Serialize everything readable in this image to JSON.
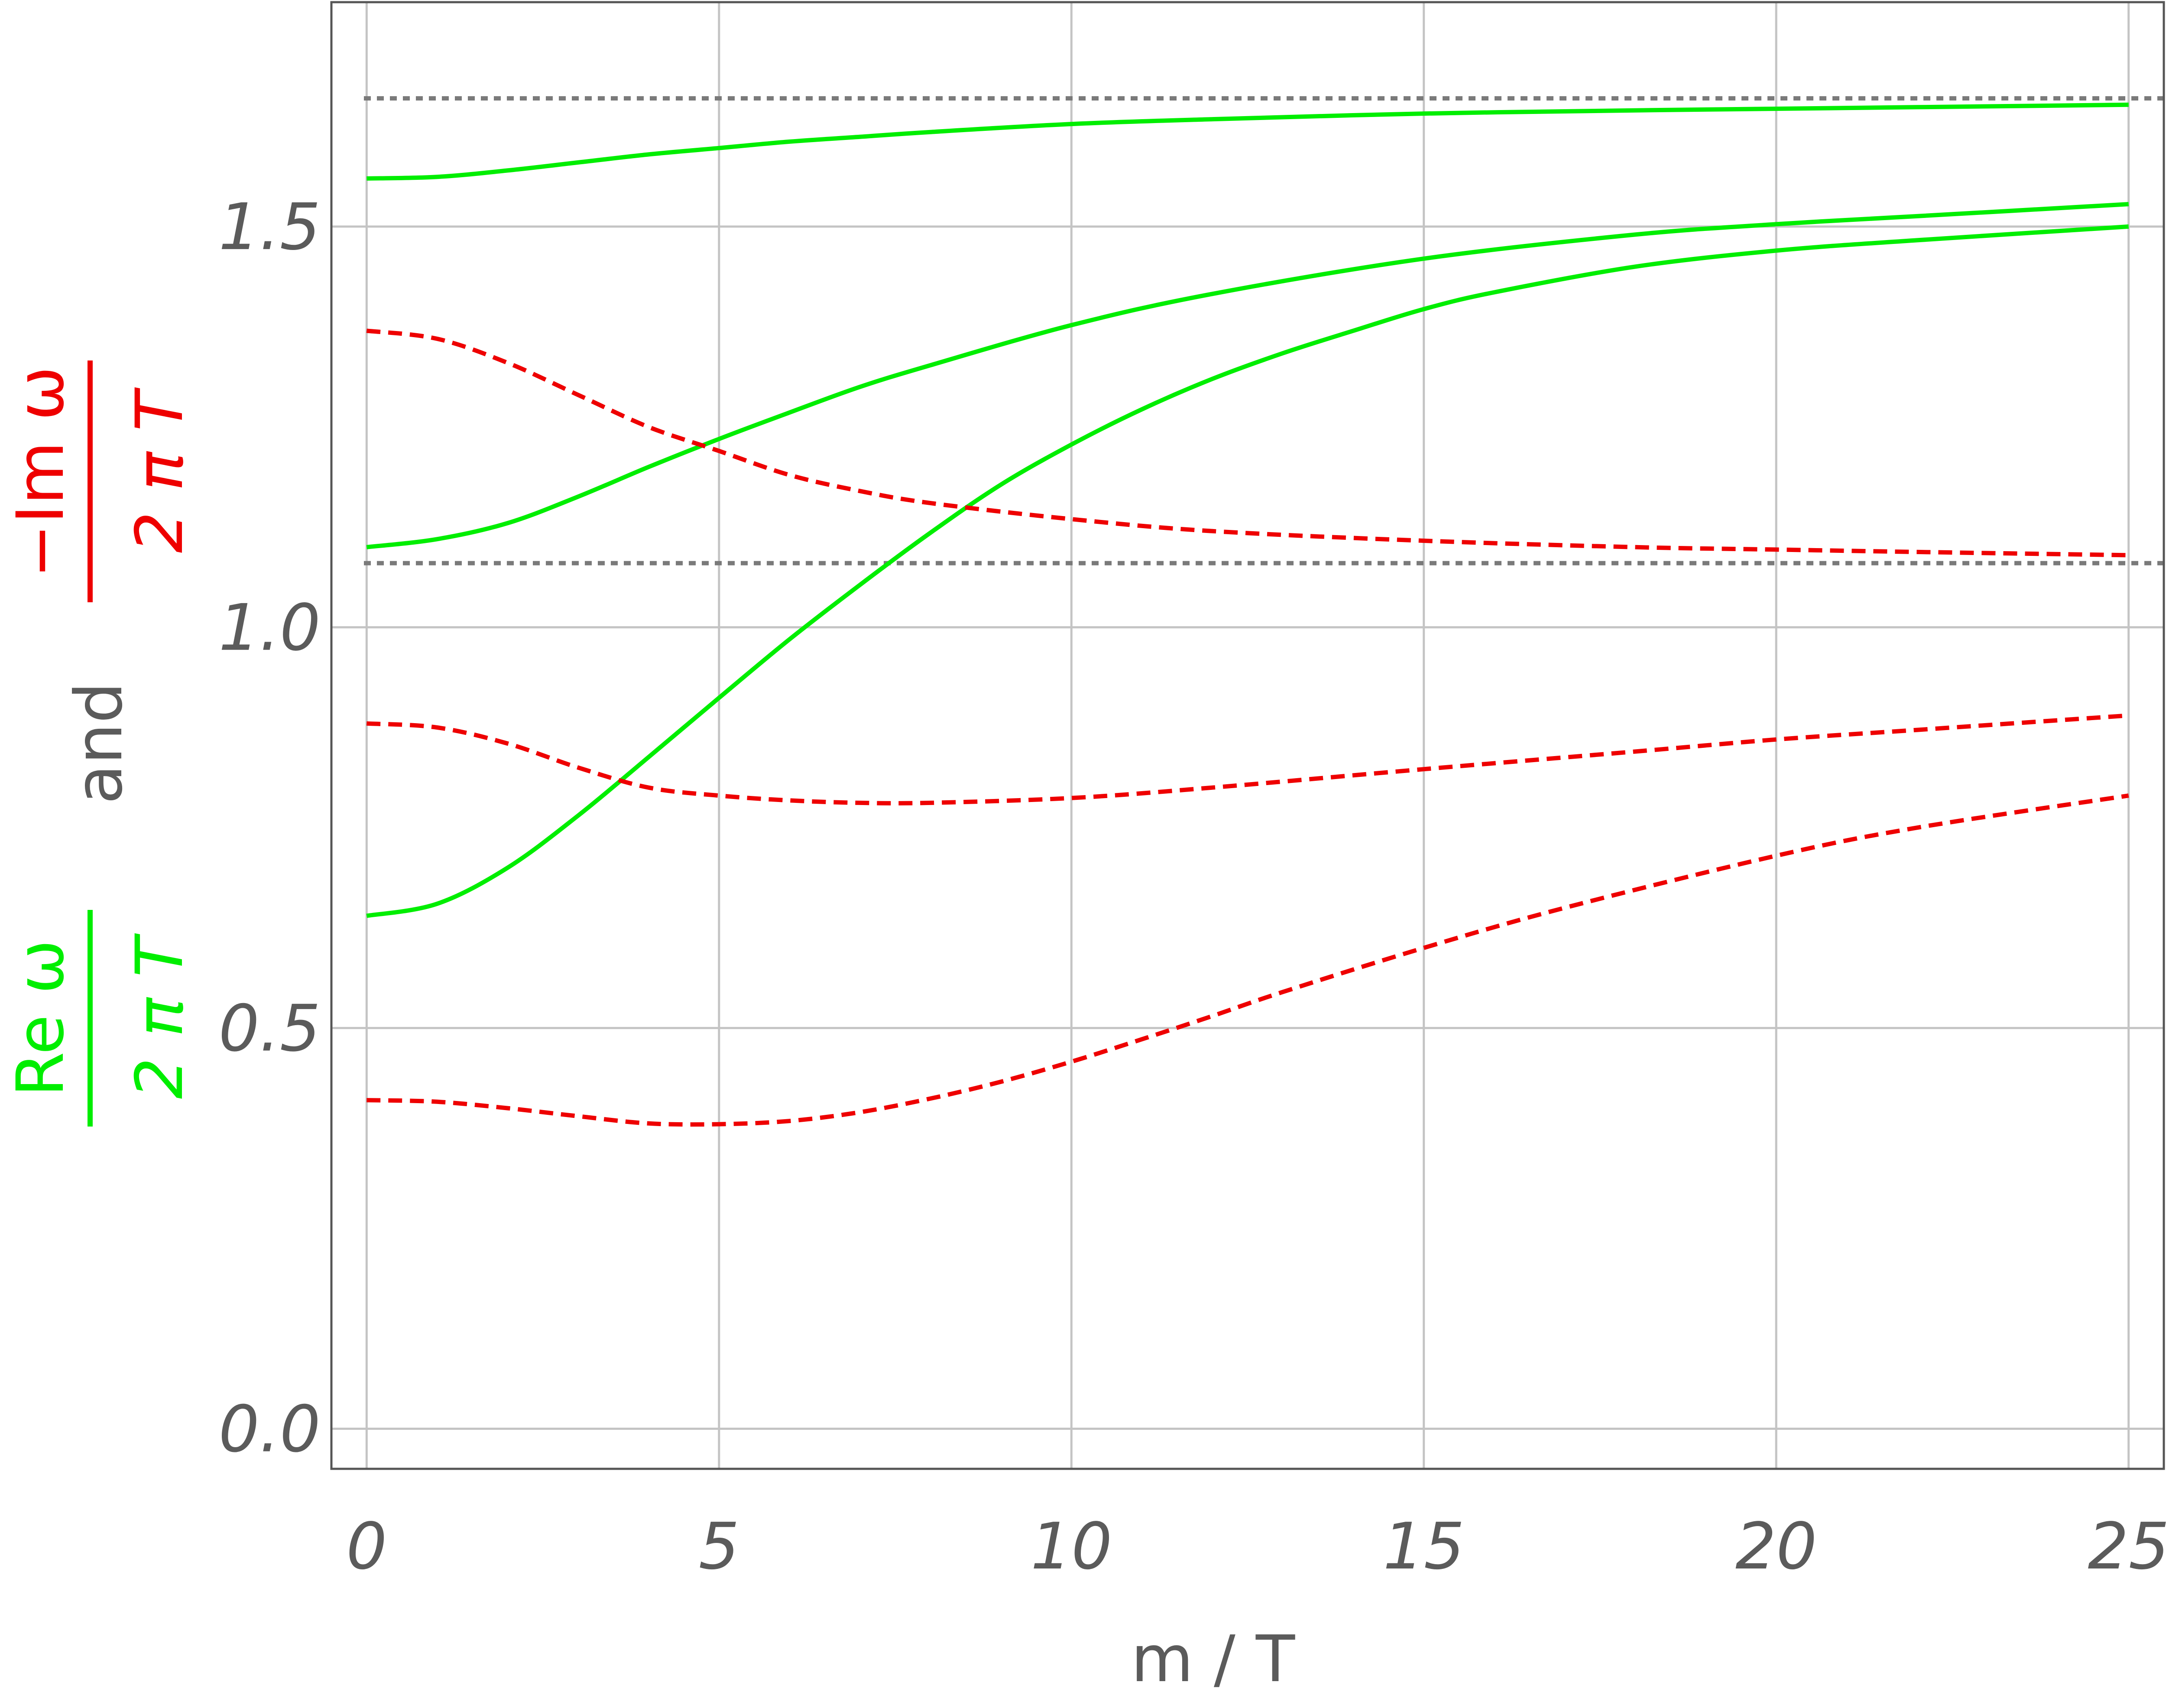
{
  "chart_data": {
    "type": "line",
    "xlabel": "m / T",
    "ylabel": {
      "re_numerator": "Re ω",
      "re_denominator": "2 π T",
      "connector": "and",
      "im_numerator": "−Im ω",
      "im_denominator": "2 π T"
    },
    "xlim": [
      -0.5,
      25.5
    ],
    "ylim": [
      -0.05,
      1.78
    ],
    "xticks": [
      0,
      5,
      10,
      15,
      20,
      25
    ],
    "xtick_labels": [
      "0",
      "5",
      "10",
      "15",
      "20",
      "25"
    ],
    "yticks": [
      0.0,
      0.5,
      1.0,
      1.5
    ],
    "ytick_labels": [
      "0.0",
      "0.5",
      "1.0",
      "1.5"
    ],
    "grid": true,
    "reference_lines": [
      1.66,
      1.08
    ],
    "colors": {
      "re": "#00ee00",
      "im": "#ee0000",
      "reference": "#7a7a7a",
      "grid": "#c4c4c4",
      "frame": "#555555"
    },
    "series": [
      {
        "part": "re",
        "style": "solid",
        "x": [
          0,
          1,
          2,
          3,
          4,
          5,
          6,
          7,
          8,
          10,
          12,
          15,
          18,
          20,
          22,
          25
        ],
        "y": [
          1.56,
          1.562,
          1.57,
          1.58,
          1.59,
          1.598,
          1.606,
          1.612,
          1.618,
          1.628,
          1.634,
          1.641,
          1.645,
          1.647,
          1.649,
          1.652
        ]
      },
      {
        "part": "re",
        "style": "solid",
        "x": [
          0,
          1,
          2,
          3,
          4,
          5,
          6,
          7,
          8,
          10,
          12,
          15,
          18,
          20,
          22,
          25
        ],
        "y": [
          1.1,
          1.11,
          1.13,
          1.163,
          1.2,
          1.235,
          1.268,
          1.3,
          1.327,
          1.377,
          1.416,
          1.46,
          1.49,
          1.503,
          1.513,
          1.528
        ]
      },
      {
        "part": "re",
        "style": "solid",
        "x": [
          0,
          1,
          2,
          3,
          4,
          5,
          6,
          7,
          8,
          9,
          10,
          11,
          12,
          13,
          14,
          15,
          16,
          18,
          20,
          22,
          25
        ],
        "y": [
          0.64,
          0.655,
          0.7,
          0.765,
          0.838,
          0.912,
          0.985,
          1.053,
          1.118,
          1.178,
          1.228,
          1.272,
          1.31,
          1.342,
          1.37,
          1.397,
          1.418,
          1.45,
          1.47,
          1.483,
          1.5
        ]
      },
      {
        "part": "im",
        "style": "dashed",
        "x": [
          0,
          1,
          2,
          3,
          4,
          5,
          6,
          7,
          8,
          10,
          12,
          15,
          18,
          20,
          22,
          25
        ],
        "y": [
          1.37,
          1.36,
          1.33,
          1.29,
          1.25,
          1.22,
          1.19,
          1.17,
          1.155,
          1.135,
          1.12,
          1.108,
          1.1,
          1.097,
          1.094,
          1.09
        ]
      },
      {
        "part": "im",
        "style": "dashed",
        "x": [
          0,
          1,
          2,
          3,
          4,
          5,
          6,
          7,
          8,
          10,
          12,
          15,
          18,
          20,
          22,
          25
        ],
        "y": [
          0.88,
          0.875,
          0.855,
          0.825,
          0.8,
          0.79,
          0.784,
          0.781,
          0.781,
          0.787,
          0.8,
          0.823,
          0.845,
          0.86,
          0.872,
          0.89
        ]
      },
      {
        "part": "im",
        "style": "dashed",
        "x": [
          0,
          1,
          2,
          3,
          4,
          5,
          6,
          7,
          8,
          9,
          10,
          11,
          12,
          13,
          15,
          17,
          20,
          22,
          25
        ],
        "y": [
          0.41,
          0.408,
          0.4,
          0.39,
          0.381,
          0.38,
          0.384,
          0.395,
          0.412,
          0.433,
          0.458,
          0.486,
          0.515,
          0.545,
          0.6,
          0.65,
          0.715,
          0.75,
          0.79
        ]
      }
    ]
  }
}
